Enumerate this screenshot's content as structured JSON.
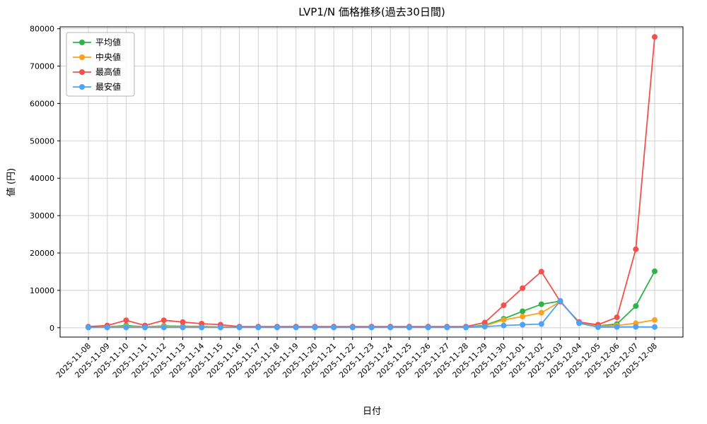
{
  "chart_data": {
    "type": "line",
    "title": "LVP1/N 価格推移(過去30日間)",
    "xlabel": "日付",
    "ylabel": "値 (円)",
    "ylim": [
      0,
      80000
    ],
    "yticks": [
      0,
      10000,
      20000,
      30000,
      40000,
      50000,
      60000,
      70000,
      80000
    ],
    "grid": true,
    "legend_position": "upper left",
    "x": [
      "2025-11-08",
      "2025-11-09",
      "2025-11-10",
      "2025-11-11",
      "2025-11-12",
      "2025-11-13",
      "2025-11-14",
      "2025-11-15",
      "2025-11-16",
      "2025-11-17",
      "2025-11-18",
      "2025-11-19",
      "2025-11-20",
      "2025-11-21",
      "2025-11-22",
      "2025-11-23",
      "2025-11-24",
      "2025-11-25",
      "2025-11-26",
      "2025-11-27",
      "2025-11-28",
      "2025-11-29",
      "2025-11-30",
      "2025-12-01",
      "2025-12-02",
      "2025-12-03",
      "2025-12-04",
      "2025-12-05",
      "2025-12-06",
      "2025-12-07",
      "2025-12-08"
    ],
    "series": [
      {
        "id": "average",
        "name": "平均値",
        "color": "#2db34a",
        "values": [
          150,
          250,
          600,
          250,
          500,
          400,
          350,
          250,
          150,
          150,
          150,
          150,
          150,
          150,
          150,
          150,
          150,
          150,
          150,
          150,
          150,
          700,
          2400,
          4400,
          6300,
          7100,
          1300,
          500,
          1000,
          5800,
          15100
        ]
      },
      {
        "id": "median",
        "name": "中央値",
        "color": "#ffa11e",
        "values": [
          100,
          200,
          300,
          200,
          300,
          250,
          250,
          200,
          120,
          120,
          120,
          120,
          120,
          120,
          120,
          120,
          120,
          120,
          120,
          120,
          120,
          500,
          2100,
          3000,
          4000,
          7000,
          1300,
          400,
          600,
          1200,
          2100
        ]
      },
      {
        "id": "max",
        "name": "最高値",
        "color": "#f4504c",
        "values": [
          300,
          600,
          2000,
          600,
          2000,
          1500,
          1100,
          800,
          300,
          300,
          300,
          300,
          300,
          300,
          300,
          300,
          300,
          300,
          300,
          300,
          300,
          1400,
          6000,
          10600,
          15000,
          7000,
          1500,
          800,
          2800,
          21000,
          77800
        ]
      },
      {
        "id": "min",
        "name": "最安値",
        "color": "#4da3f5",
        "values": [
          80,
          80,
          80,
          80,
          80,
          80,
          80,
          80,
          80,
          80,
          80,
          80,
          80,
          80,
          80,
          80,
          80,
          80,
          80,
          80,
          80,
          300,
          600,
          800,
          1000,
          7200,
          1200,
          150,
          200,
          250,
          200
        ]
      }
    ],
    "colors": {
      "grid": "#cccccc",
      "axis": "#000000",
      "legend_border": "#b3b3b3",
      "legend_bg": "#ffffff"
    }
  }
}
